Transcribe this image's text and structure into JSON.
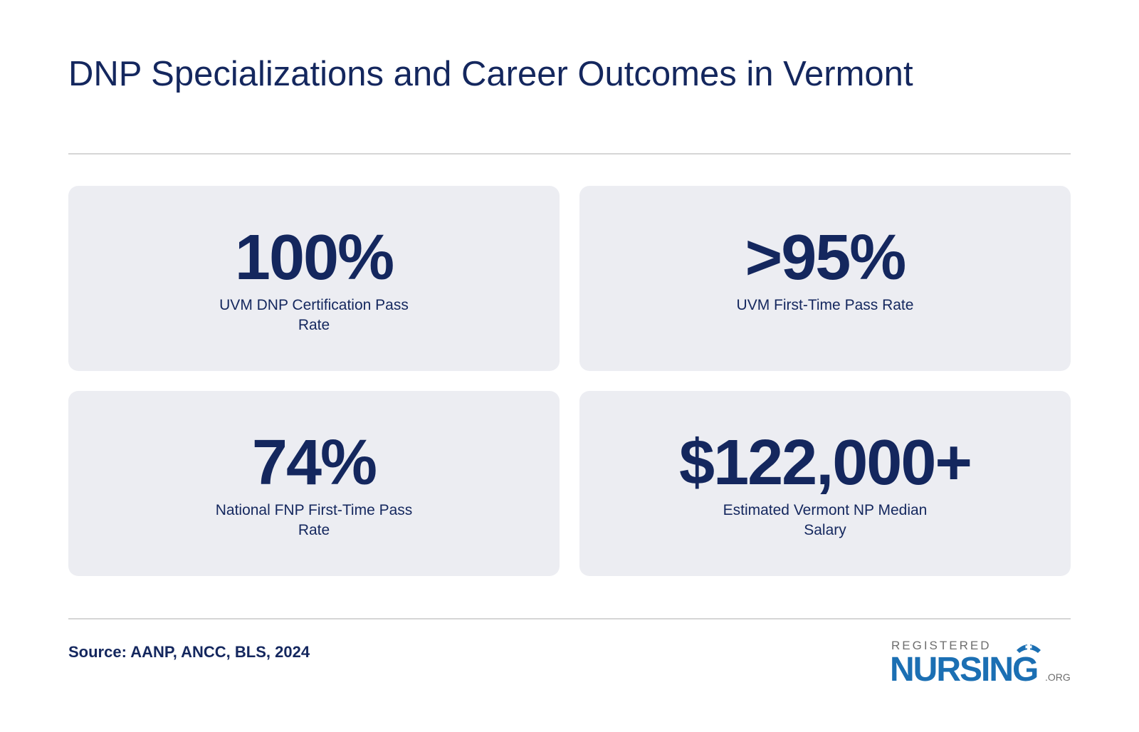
{
  "header": {
    "title": "DNP Specializations and Career Outcomes in Vermont"
  },
  "stats": [
    {
      "value": "100%",
      "label": "UVM DNP Certification Pass Rate"
    },
    {
      "value": ">95%",
      "label": "UVM First-Time Pass Rate"
    },
    {
      "value": "74%",
      "label": "National FNP First-Time Pass Rate"
    },
    {
      "value": "$122,000+",
      "label": "Estimated Vermont NP Median Salary"
    }
  ],
  "footer": {
    "source": "Source: AANP, ANCC, BLS, 2024",
    "logo": {
      "top": "REGISTERED",
      "main": "NURSING",
      "suffix": ".ORG"
    }
  }
}
